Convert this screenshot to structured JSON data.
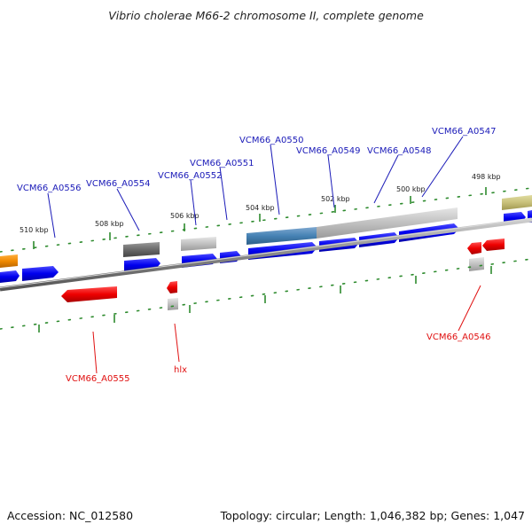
{
  "title": "Vibrio cholerae M66-2 chromosome II, complete genome",
  "footer": {
    "accession": "Accession: NC_012580",
    "summary": "Topology: circular; Length: 1,046,382 bp; Genes: 1,047"
  },
  "ticks": [
    "510 kbp",
    "508 kbp",
    "506 kbp",
    "504 kbp",
    "502 kbp",
    "500 kbp",
    "498 kbp"
  ],
  "gene_labels_top": [
    "VCM66_A0556",
    "VCM66_A0554",
    "VCM66_A0552",
    "VCM66_A0551",
    "VCM66_A0550",
    "VCM66_A0549",
    "VCM66_A0548",
    "VCM66_A0547"
  ],
  "gene_labels_bottom": [
    "VCM66_A0555",
    "hlx",
    "VCM66_A0546"
  ],
  "colors": {
    "forward_gene": "#0000ee",
    "reverse_gene": "#ee0000",
    "backbone": "#8a8a8a",
    "tick": "#2e8b2e",
    "highlight_gene": "#4682b4",
    "label_blue": "#1a1ab8",
    "label_red": "#e01010"
  }
}
